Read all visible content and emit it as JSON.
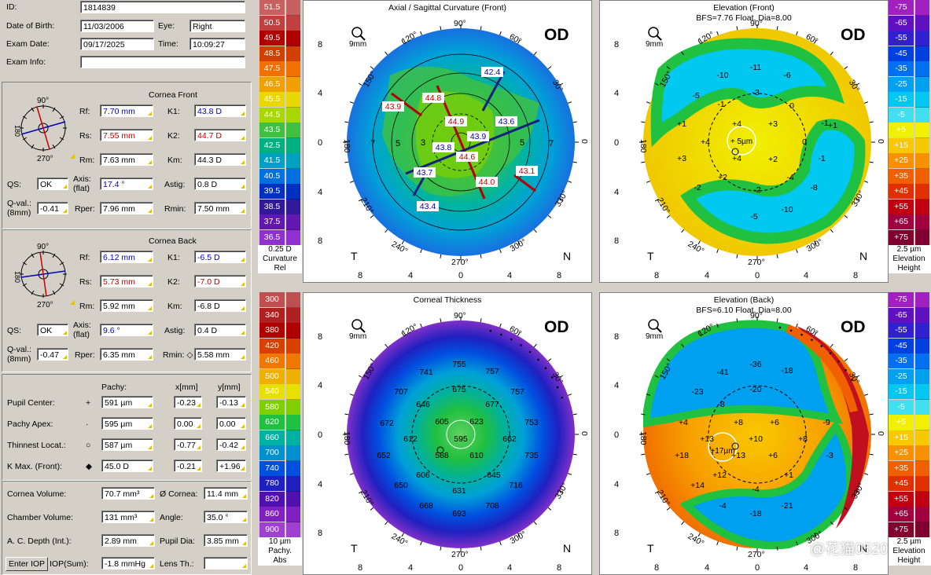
{
  "patient": {
    "id_label": "ID:",
    "id": "1814839",
    "dob_label": "Date of Birth:",
    "dob": "11/03/2006",
    "eye_label": "Eye:",
    "eye": "Right",
    "exam_date_label": "Exam Date:",
    "exam_date": "09/17/2025",
    "time_label": "Time:",
    "time": "10:09:27",
    "exam_info_label": "Exam Info:",
    "exam_info": ""
  },
  "front": {
    "title": "Cornea Front",
    "rf_label": "Rf:",
    "rf": "7.70 mm",
    "rs_label": "Rs:",
    "rs": "7.55 mm",
    "rm_label": "Rm:",
    "rm": "7.63 mm",
    "k1_label": "K1:",
    "k1": "43.8 D",
    "k2_label": "K2:",
    "k2": "44.7 D",
    "km_label": "Km:",
    "km": "44.3 D",
    "qs_label": "QS:",
    "qs": "OK",
    "axis_label": "Axis:",
    "flat_label": "(flat)",
    "axis": "17.4 °",
    "astig_label": "Astig:",
    "astig": "0.8 D",
    "qval_label": "Q-val.:",
    "qval_sub": "(8mm)",
    "qval": "-0.41",
    "rper_label": "Rper:",
    "rper": "7.96 mm",
    "rmin_label": "Rmin:",
    "rmin": "7.50 mm",
    "dial_top": "90°",
    "dial_left": "180",
    "dial_bottom": "270°"
  },
  "back": {
    "title": "Cornea Back",
    "rf": "6.12 mm",
    "rs": "5.73 mm",
    "rm": "5.92 mm",
    "k1": "-6.5 D",
    "k2": "-7.0 D",
    "km": "-6.8 D",
    "qs": "OK",
    "axis": "9.6 °",
    "astig": "0.4 D",
    "qval": "-0.47",
    "rper": "6.35 mm",
    "rmin_label": "Rmin: ◇",
    "rmin": "5.58 mm"
  },
  "pachy": {
    "col_pachy": "Pachy:",
    "col_x": "x[mm]",
    "col_y": "y[mm]",
    "rows": [
      {
        "label": "Pupil Center:",
        "sym": "+",
        "pachy": "591 µm",
        "x": "-0.23",
        "y": "-0.13"
      },
      {
        "label": "Pachy Apex:",
        "sym": "·",
        "pachy": "595 µm",
        "x": "0.00",
        "y": "0.00"
      },
      {
        "label": "Thinnest Locat.:",
        "sym": "○",
        "pachy": "587 µm",
        "x": "-0.77",
        "y": "-0.42"
      },
      {
        "label": "K Max. (Front):",
        "sym": "◆",
        "pachy": "45.0 D",
        "x": "-0.21",
        "y": "+1.96"
      }
    ]
  },
  "volume": {
    "cornea_volume_label": "Cornea Volume:",
    "cornea_volume": "70.7 mm³",
    "cornea_dia_label": "Ø Cornea:",
    "cornea_dia": "11.4 mm",
    "chamber_volume_label": "Chamber Volume:",
    "chamber_volume": "131 mm³",
    "angle_label": "Angle:",
    "angle": "35.0 °",
    "acd_label": "A. C. Depth (Int.):",
    "acd": "2.89 mm",
    "pupil_dia_label": "Pupil Dia:",
    "pupil_dia": "3.85 mm",
    "enter_iop": "Enter IOP",
    "iop_label": "IOP(Sum):",
    "iop": "-1.8 mmHg",
    "lens_label": "Lens Th.:",
    "lens": ""
  },
  "scales": {
    "curvature": {
      "labels": [
        "51.5",
        "50.5",
        "49.5",
        "48.5",
        "47.5",
        "46.5",
        "45.5",
        "44.5",
        "43.5",
        "42.5",
        "41.5",
        "40.5",
        "39.5",
        "38.5",
        "37.5",
        "36.5"
      ],
      "colors": [
        "#c86060",
        "#c04040",
        "#b00000",
        "#d04000",
        "#f07000",
        "#f0a000",
        "#e8d800",
        "#a8d800",
        "#40c040",
        "#00b080",
        "#00a0c0",
        "#0070e0",
        "#0030c0",
        "#301898",
        "#6018b0",
        "#9030d0"
      ],
      "step": "0.25 D",
      "f1": "Curvature",
      "f2": "Rel"
    },
    "elevation_front": {
      "labels": [
        "-75",
        "-65",
        "-55",
        "-45",
        "-35",
        "-25",
        "-15",
        "-5",
        "+5",
        "+15",
        "+25",
        "+35",
        "+45",
        "+55",
        "+65",
        "+75"
      ],
      "colors": [
        "#a020c0",
        "#6010c0",
        "#3020d0",
        "#0040e0",
        "#0070f0",
        "#00a0f0",
        "#00c8f0",
        "#40e0f0",
        "#f0f000",
        "#f8c800",
        "#f89000",
        "#f06000",
        "#e03000",
        "#c00010",
        "#a00040",
        "#800030"
      ],
      "step": "2.5 µm",
      "f1": "Elevation",
      "f2": "Height"
    },
    "thickness": {
      "labels": [
        "300",
        "340",
        "380",
        "420",
        "460",
        "500",
        "540",
        "580",
        "620",
        "660",
        "700",
        "740",
        "780",
        "820",
        "860",
        "900"
      ],
      "colors": [
        "#c05050",
        "#b02020",
        "#b00000",
        "#d84000",
        "#f07800",
        "#f0b000",
        "#e8e000",
        "#80d000",
        "#20c040",
        "#00b0a0",
        "#0090d0",
        "#0050e0",
        "#2020c0",
        "#5010b0",
        "#8020c0",
        "#a040d0"
      ],
      "step": "10 µm",
      "f1": "Pachy.",
      "f2": "Abs"
    },
    "elevation_back": {
      "labels": [
        "-75",
        "-65",
        "-55",
        "-45",
        "-35",
        "-25",
        "-15",
        "-5",
        "+5",
        "+15",
        "+25",
        "+35",
        "+45",
        "+55",
        "+65",
        "+75"
      ],
      "colors": [
        "#a020c0",
        "#6010c0",
        "#3020d0",
        "#0040e0",
        "#0070f0",
        "#00a0f0",
        "#00c8f0",
        "#40e0f0",
        "#f0f000",
        "#f8c800",
        "#f89000",
        "#f06000",
        "#e03000",
        "#c00010",
        "#a00040",
        "#800030"
      ],
      "step": "2.5 µm",
      "f1": "Elevation",
      "f2": "Height"
    }
  },
  "maps": {
    "axial": {
      "title": "Axial / Sagittal Curvature (Front)",
      "subtitle": "",
      "zoom": "9mm",
      "eye": "OD",
      "T": "T",
      "N": "N",
      "values": [
        {
          "t": "43.9",
          "red": true
        },
        {
          "t": "44.8",
          "red": true
        },
        {
          "t": "42.4",
          "red": false
        },
        {
          "t": "44.9",
          "red": true
        },
        {
          "t": "43.6",
          "red": false
        },
        {
          "t": "43.9",
          "red": false
        },
        {
          "t": "43.8",
          "red": false
        },
        {
          "t": "44.6",
          "red": true
        },
        {
          "t": "43.7",
          "red": false
        },
        {
          "t": "44.0",
          "red": true
        },
        {
          "t": "43.1",
          "red": true
        },
        {
          "t": "43.4",
          "red": false
        }
      ],
      "rings": [
        {
          "t": "5"
        },
        {
          "t": "3"
        },
        {
          "t": "5"
        },
        {
          "t": "7"
        },
        {
          "t": "7"
        }
      ]
    },
    "elev_front": {
      "title": "Elevation (Front)",
      "subtitle": "BFS=7.76 Float, Dia=8.00",
      "zoom": "9mm",
      "eye": "OD",
      "T": "T",
      "N": "N",
      "center": "+ 5µm",
      "values": [
        "-11",
        "-10",
        "-6",
        "-5",
        "-3",
        "-1",
        "0",
        "-1",
        "+1",
        "+4",
        "+3",
        "+4",
        "0",
        "+3",
        "+4",
        "+2",
        "-1",
        "+1",
        "+2",
        "-4",
        "-8",
        "-2",
        "-2",
        "-5",
        "-10"
      ]
    },
    "thickness": {
      "title": "Corneal Thickness",
      "subtitle": "",
      "zoom": "9mm",
      "eye": "OD",
      "T": "T",
      "N": "N",
      "values": [
        "755",
        "741",
        "757",
        "707",
        "675",
        "757",
        "646",
        "677",
        "672",
        "605",
        "623",
        "753",
        "612",
        "595",
        "662",
        "652",
        "588",
        "610",
        "735",
        "606",
        "645",
        "650",
        "716",
        "668",
        "631",
        "708",
        "693"
      ]
    },
    "elev_back": {
      "title": "Elevation (Back)",
      "subtitle": "BFS=6.10 Float, Dia=8.00",
      "zoom": "9mm",
      "eye": "OD",
      "T": "T",
      "N": "N",
      "center": "+17µm",
      "values": [
        "-36",
        "-41",
        "-18",
        "-23",
        "-20",
        "-8",
        "-9",
        "+4",
        "+8",
        "+6",
        "+13",
        "+10",
        "+8",
        "+18",
        "+13",
        "+6",
        "-3",
        "+12",
        "+1",
        "+14",
        "-4",
        "-4",
        "-18",
        "-21"
      ]
    }
  },
  "axis_ticks": {
    "left": [
      "8",
      "4",
      "0",
      "4",
      "8"
    ],
    "bottom": [
      "8",
      "4",
      "0",
      "4",
      "8"
    ],
    "top": "90°",
    "bottom_deg": "270°",
    "d120": "120°",
    "d60": "60°",
    "d150": "150°",
    "d30": "30°",
    "d180": "180",
    "d0": "0",
    "d210": "210°",
    "d330": "330°",
    "d240": "240°",
    "d300": "300°"
  },
  "watermark": "@花猫0520"
}
